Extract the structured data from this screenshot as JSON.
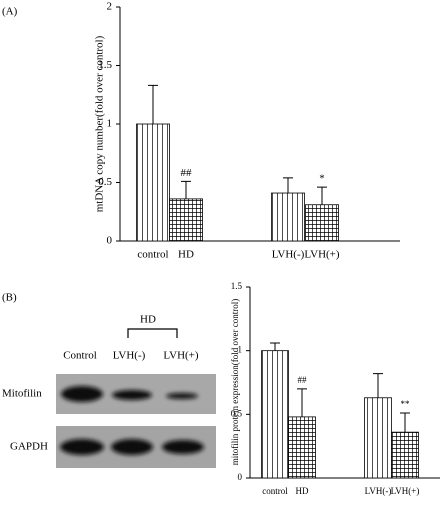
{
  "panels": [
    "(A)",
    "(B)"
  ],
  "chart_data": [
    {
      "type": "bar",
      "y_label": "mtDNA copy number(fold over control)",
      "categories": [
        "control",
        "HD",
        "LVH(-)",
        "LVH(+)"
      ],
      "values": [
        1.0,
        0.36,
        0.41,
        0.31
      ],
      "errors": [
        0.33,
        0.15,
        0.13,
        0.15
      ],
      "value_annotations": [
        null,
        "##",
        null,
        "*"
      ],
      "patterns": [
        "vertical",
        "grid",
        "vertical",
        "grid"
      ],
      "color": "#000000",
      "ylim": [
        0,
        2
      ],
      "yticks": [
        0,
        0.5,
        1,
        1.5,
        2
      ]
    },
    {
      "type": "bar",
      "y_label": "mitofilin protein expression(fold over control)",
      "categories": [
        "control",
        "HD",
        "LVH(-)",
        "LVH(+)"
      ],
      "values": [
        1.0,
        0.48,
        0.63,
        0.36
      ],
      "errors": [
        0.06,
        0.22,
        0.19,
        0.15
      ],
      "value_annotations": [
        null,
        "##",
        null,
        "**"
      ],
      "patterns": [
        "vertical",
        "grid",
        "vertical",
        "grid"
      ],
      "color": "#000000",
      "ylim": [
        0,
        1.5
      ],
      "yticks": [
        0,
        0.5,
        1,
        1.5
      ]
    }
  ],
  "blot": {
    "group_label": "HD",
    "lanes": [
      "Control",
      "LVH(-)",
      "LVH(+)"
    ],
    "rows": [
      "Mitofilin",
      "GAPDH"
    ]
  }
}
